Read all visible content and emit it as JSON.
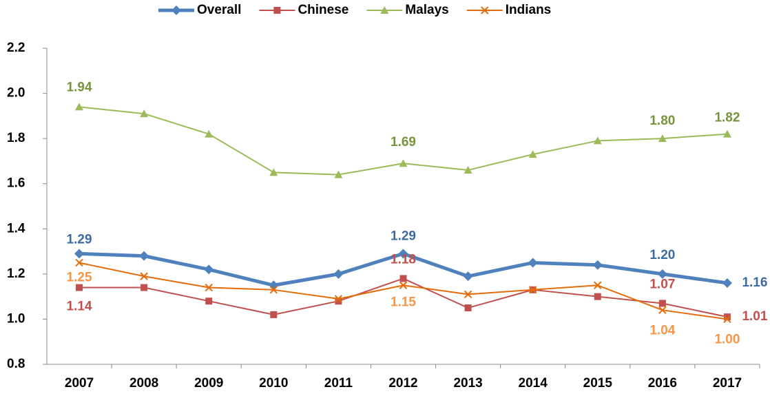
{
  "chart_data": {
    "type": "line",
    "categories": [
      "2007",
      "2008",
      "2009",
      "2010",
      "2011",
      "2012",
      "2013",
      "2014",
      "2015",
      "2016",
      "2017"
    ],
    "series": [
      {
        "name": "Overall",
        "color": "#4f81bd",
        "label_color": "#3e6aa3",
        "marker": "diamond",
        "width": 5,
        "values": [
          1.29,
          1.28,
          1.22,
          1.15,
          1.2,
          1.29,
          1.19,
          1.25,
          1.24,
          1.2,
          1.16
        ],
        "value_labels": [
          "1.29",
          null,
          null,
          null,
          null,
          "1.29",
          null,
          null,
          null,
          "1.20",
          "1.16"
        ]
      },
      {
        "name": "Chinese",
        "color": "#c0504d",
        "label_color": "#c0504d",
        "marker": "square",
        "width": 2,
        "values": [
          1.14,
          1.14,
          1.08,
          1.02,
          1.08,
          1.18,
          1.05,
          1.13,
          1.1,
          1.07,
          1.01
        ],
        "value_labels": [
          "1.14",
          null,
          null,
          null,
          null,
          "1.18",
          null,
          null,
          null,
          "1.07",
          "1.01"
        ]
      },
      {
        "name": "Malays",
        "color": "#9bbb59",
        "label_color": "#77933c",
        "marker": "triangle",
        "width": 2,
        "values": [
          1.94,
          1.91,
          1.82,
          1.65,
          1.64,
          1.69,
          1.66,
          1.73,
          1.79,
          1.8,
          1.82
        ],
        "value_labels": [
          "1.94",
          null,
          null,
          null,
          null,
          "1.69",
          null,
          null,
          null,
          "1.80",
          "1.82"
        ]
      },
      {
        "name": "Indians",
        "color": "#e46c0a",
        "label_color": "#f79646",
        "marker": "x",
        "width": 2,
        "values": [
          1.25,
          1.19,
          1.14,
          1.13,
          1.09,
          1.15,
          1.11,
          1.13,
          1.15,
          1.04,
          1.0
        ],
        "value_labels": [
          "1.25",
          null,
          null,
          null,
          null,
          "1.15",
          null,
          null,
          null,
          "1.04",
          "1.00"
        ]
      }
    ],
    "ylim": [
      0.8,
      2.2
    ],
    "yticks": [
      0.8,
      {
        "value": 1.0,
        "label": "1.0"
      },
      1.2,
      1.4,
      1.6,
      1.8,
      {
        "value": 2.0,
        "label": "2.0"
      },
      2.2
    ],
    "grid": false,
    "legend": "top"
  }
}
